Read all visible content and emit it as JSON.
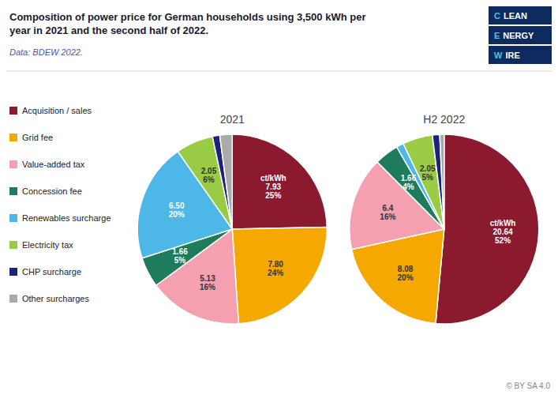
{
  "title": "Composition of power price for German households using 3,500 kWh per\nyear in 2021 and the second half of 2022.",
  "subtitle": "Data: BDEW 2022.",
  "annotations": [
    "CLEAN",
    "ENERGY",
    "WIRE",
    "© BY SA 4.0"
  ],
  "chart_data": [
    {
      "type": "pie",
      "title": "2021",
      "categories": [
        "Acquisition / sales",
        "Grid fee",
        "Value-added tax",
        "Concession fee",
        "Renewables surcharge",
        "Electricity tax",
        "CHP surcharge",
        "Other surcharges"
      ],
      "values": [
        7.93,
        7.8,
        5.13,
        1.66,
        6.5,
        2.05,
        0.4,
        0.68
      ],
      "value_labels": [
        "ct/kWh\n7.93\n25%",
        "7.80\n24%",
        "5.13\n16%",
        "1.66\n5%",
        "6.50\n20%",
        "2.05\n6%",
        null,
        null
      ],
      "colors": [
        "#8B1A2E",
        "#F5A800",
        "#F4A0B0",
        "#1E7B5B",
        "#4DB8E8",
        "#99CC44",
        "#1A237E",
        "#AAAAAA"
      ],
      "data_labels": true,
      "legend": "left"
    },
    {
      "type": "pie",
      "title": "H2 2022",
      "categories": [
        "Acquisition / sales",
        "Grid fee",
        "Value-added tax",
        "Concession fee",
        "Renewables surcharge",
        "Electricity tax",
        "CHP surcharge",
        "Other surcharges"
      ],
      "values": [
        20.64,
        8.08,
        6.4,
        1.66,
        0.5,
        2.05,
        0.5,
        0.3
      ],
      "value_labels": [
        "ct/kWh\n20.64\n52%",
        "8.08\n20%",
        "6.4\n16%",
        "1.66\n4%",
        null,
        "2.05\n5%",
        null,
        null
      ],
      "colors": [
        "#8B1A2E",
        "#F5A800",
        "#F4A0B0",
        "#1E7B5B",
        "#4DB8E8",
        "#99CC44",
        "#1A237E",
        "#AAAAAA"
      ],
      "data_labels": true
    }
  ]
}
